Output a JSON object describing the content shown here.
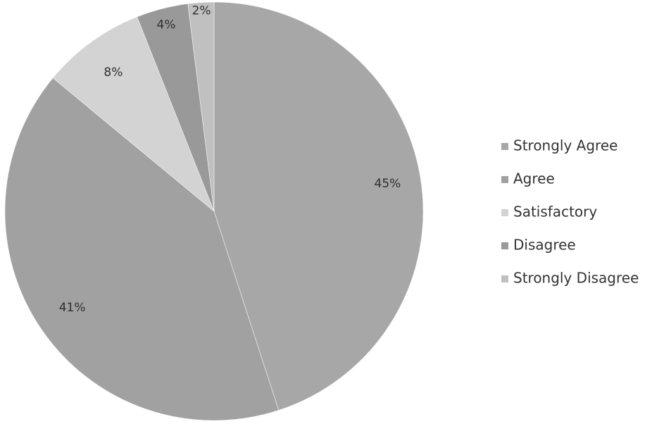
{
  "chart_data": {
    "type": "pie",
    "title": "",
    "start_angle_deg": 0,
    "direction": "clockwise",
    "legend_position": "right",
    "slices": [
      {
        "label": "Strongly Agree",
        "value": 45,
        "display": "45%",
        "color": "#a7a7a7"
      },
      {
        "label": "Agree",
        "value": 41,
        "display": "41%",
        "color": "#a1a1a1"
      },
      {
        "label": "Satisfactory",
        "value": 8,
        "display": "8%",
        "color": "#d3d3d3"
      },
      {
        "label": "Disagree",
        "value": 4,
        "display": "4%",
        "color": "#999999"
      },
      {
        "label": "Strongly Disagree",
        "value": 2,
        "display": "2%",
        "color": "#c0c0c0"
      }
    ]
  }
}
